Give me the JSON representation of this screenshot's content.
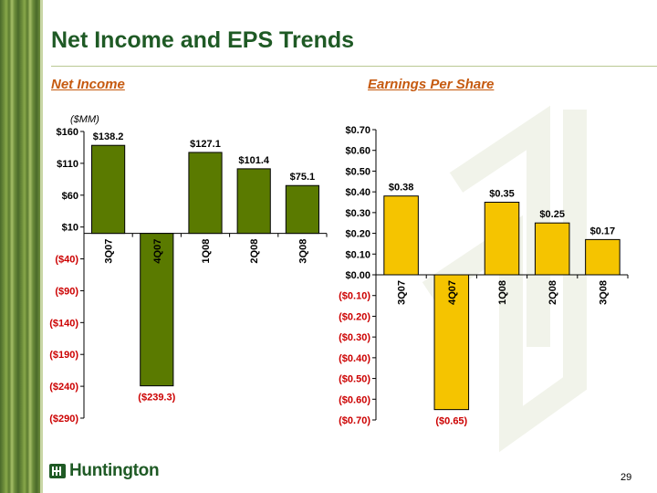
{
  "slide": {
    "title": "Net Income and EPS Trends",
    "page_number": "29",
    "logo_text": "Huntington"
  },
  "colors": {
    "title": "#1f5a25",
    "subtitle": "#c65a10",
    "net_income_bar": "#5a7a00",
    "eps_bar": "#f5c400",
    "negative_label": "#cc0000"
  },
  "chart_data": [
    {
      "type": "bar",
      "subtitle": "Net Income",
      "unit_label": "($MM)",
      "categories": [
        "3Q07",
        "4Q07",
        "1Q08",
        "2Q08",
        "3Q08"
      ],
      "values": [
        138.2,
        -239.3,
        127.1,
        101.4,
        75.1
      ],
      "value_labels": [
        "$138.2",
        "($239.3)",
        "$127.1",
        "$101.4",
        "$75.1"
      ],
      "ylim": [
        -290,
        160
      ],
      "ticks": [
        160,
        110,
        60,
        10,
        -40,
        -90,
        -140,
        -190,
        -240,
        -290
      ],
      "tick_labels": [
        "$160",
        "$110",
        "$60",
        "$10",
        "($40)",
        "($90)",
        "($140)",
        "($190)",
        "($240)",
        "($290)"
      ]
    },
    {
      "type": "bar",
      "subtitle": "Earnings Per Share",
      "categories": [
        "3Q07",
        "4Q07",
        "1Q08",
        "2Q08",
        "3Q08"
      ],
      "values": [
        0.38,
        -0.65,
        0.35,
        0.25,
        0.17
      ],
      "value_labels": [
        "$0.38",
        "($0.65)",
        "$0.35",
        "$0.25",
        "$0.17"
      ],
      "ylim": [
        -0.7,
        0.7
      ],
      "ticks": [
        0.7,
        0.6,
        0.5,
        0.4,
        0.3,
        0.2,
        0.1,
        0.0,
        -0.1,
        -0.2,
        -0.3,
        -0.4,
        -0.5,
        -0.6,
        -0.7
      ],
      "tick_labels": [
        "$0.70",
        "$0.60",
        "$0.50",
        "$0.40",
        "$0.30",
        "$0.20",
        "$0.10",
        "$0.00",
        "($0.10)",
        "($0.20)",
        "($0.30)",
        "($0.40)",
        "($0.50)",
        "($0.60)",
        "($0.70)"
      ]
    }
  ]
}
